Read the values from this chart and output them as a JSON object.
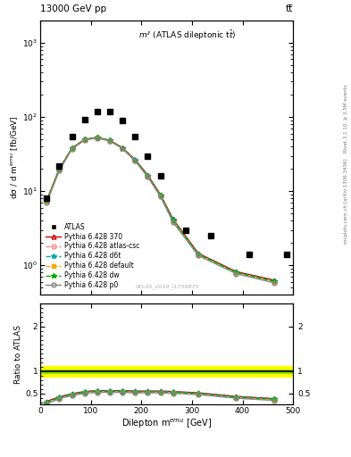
{
  "title_top": "13000 GeV pp",
  "title_right": "tt̅",
  "plot_title": "m$^{ll}$ (ATLAS dileptonic t$\\bar{t}$bar)",
  "xlabel": "Dilepton m$^{emu}$ [GeV]",
  "ylabel": "dσ / d m$^{emu}$ [fb/GeV]",
  "ylabel_ratio": "Ratio to ATLAS",
  "right_label_top": "Rivet 3.1.10, ≥ 3.5M events",
  "right_label_bot": "mcplots.cern.ch [arXiv:1306.3436]",
  "watermark": "ATLAS_2019_I1759875",
  "atlas_data_x": [
    12.5,
    37.5,
    62.5,
    87.5,
    112.5,
    137.5,
    162.5,
    187.5,
    212.5,
    237.5,
    287.5,
    337.5,
    412.5,
    487.5
  ],
  "atlas_data_y": [
    8.0,
    22.0,
    55.0,
    93.0,
    120.0,
    120.0,
    90.0,
    55.0,
    30.0,
    16.0,
    3.0,
    2.5,
    1.4,
    1.4
  ],
  "mc_x": [
    12.5,
    37.5,
    62.5,
    87.5,
    112.5,
    137.5,
    162.5,
    187.5,
    212.5,
    237.5,
    262.5,
    312.5,
    387.5,
    462.5
  ],
  "pythia_370_y": [
    7.5,
    20.0,
    38.0,
    50.0,
    53.0,
    48.5,
    38.5,
    26.5,
    16.5,
    9.0,
    4.2,
    1.45,
    0.82,
    0.63
  ],
  "pythia_atl_y": [
    7.2,
    19.5,
    37.5,
    49.5,
    52.5,
    48.0,
    38.0,
    26.0,
    16.0,
    8.7,
    4.0,
    1.4,
    0.79,
    0.6
  ],
  "pythia_d6t_y": [
    7.3,
    19.8,
    37.8,
    49.8,
    52.8,
    48.2,
    38.2,
    26.2,
    16.2,
    8.8,
    4.1,
    1.42,
    0.8,
    0.61
  ],
  "pythia_def_y": [
    7.1,
    19.3,
    37.3,
    49.3,
    52.3,
    47.8,
    37.8,
    25.8,
    15.8,
    8.6,
    3.9,
    1.38,
    0.78,
    0.59
  ],
  "pythia_dw_y": [
    7.4,
    19.7,
    37.7,
    49.7,
    52.7,
    48.1,
    38.1,
    26.1,
    16.1,
    8.75,
    4.05,
    1.41,
    0.8,
    0.61
  ],
  "pythia_p0_y": [
    7.0,
    19.0,
    37.0,
    49.0,
    52.0,
    47.5,
    37.5,
    25.5,
    15.5,
    8.5,
    3.8,
    1.35,
    0.77,
    0.58
  ],
  "ratio_370_y": [
    0.32,
    0.42,
    0.49,
    0.54,
    0.56,
    0.56,
    0.56,
    0.55,
    0.55,
    0.55,
    0.54,
    0.51,
    0.43,
    0.38
  ],
  "ratio_atl_y": [
    0.29,
    0.4,
    0.47,
    0.52,
    0.54,
    0.54,
    0.54,
    0.53,
    0.53,
    0.53,
    0.52,
    0.49,
    0.41,
    0.36
  ],
  "ratio_d6t_y": [
    0.3,
    0.41,
    0.48,
    0.53,
    0.55,
    0.55,
    0.55,
    0.54,
    0.54,
    0.54,
    0.53,
    0.5,
    0.42,
    0.37
  ],
  "ratio_def_y": [
    0.28,
    0.39,
    0.46,
    0.51,
    0.53,
    0.53,
    0.53,
    0.52,
    0.52,
    0.52,
    0.51,
    0.48,
    0.4,
    0.35
  ],
  "ratio_dw_y": [
    0.3,
    0.4,
    0.47,
    0.52,
    0.54,
    0.54,
    0.54,
    0.53,
    0.53,
    0.53,
    0.52,
    0.49,
    0.41,
    0.37
  ],
  "ratio_p0_y": [
    0.27,
    0.38,
    0.45,
    0.5,
    0.52,
    0.52,
    0.52,
    0.51,
    0.51,
    0.51,
    0.5,
    0.47,
    0.39,
    0.34
  ],
  "band_green_lo": 0.96,
  "band_green_hi": 1.04,
  "band_yellow_lo": 0.88,
  "band_yellow_hi": 1.12,
  "color_370": "#cc0000",
  "color_atl": "#ff8888",
  "color_d6t": "#00aaaa",
  "color_def": "#ffaa00",
  "color_dw": "#00aa00",
  "color_p0": "#888888",
  "xlim": [
    0,
    500
  ],
  "ylim_main": [
    0.4,
    2000
  ],
  "xticks": [
    0,
    100,
    200,
    300,
    400,
    500
  ]
}
